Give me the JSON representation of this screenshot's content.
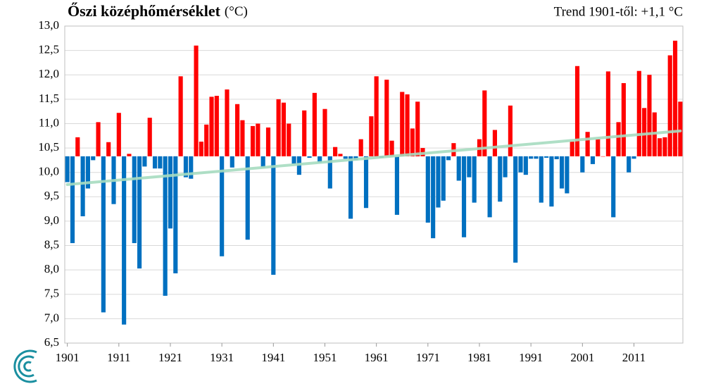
{
  "chart_data": {
    "type": "bar",
    "title": "Őszi középhőmérséklet",
    "title_unit": "(°C)",
    "trend_label": "Trend 1901-től: +1,1 °C",
    "x": [
      1901,
      1902,
      1903,
      1904,
      1905,
      1906,
      1907,
      1908,
      1909,
      1910,
      1911,
      1912,
      1913,
      1914,
      1915,
      1916,
      1917,
      1918,
      1919,
      1920,
      1921,
      1922,
      1923,
      1924,
      1925,
      1926,
      1927,
      1928,
      1929,
      1930,
      1931,
      1932,
      1933,
      1934,
      1935,
      1936,
      1937,
      1938,
      1939,
      1940,
      1941,
      1942,
      1943,
      1944,
      1945,
      1946,
      1947,
      1948,
      1949,
      1950,
      1951,
      1952,
      1953,
      1954,
      1955,
      1956,
      1957,
      1958,
      1959,
      1960,
      1961,
      1962,
      1963,
      1964,
      1965,
      1966,
      1967,
      1968,
      1969,
      1970,
      1971,
      1972,
      1973,
      1974,
      1975,
      1976,
      1977,
      1978,
      1979,
      1980,
      1981,
      1982,
      1983,
      1984,
      1985,
      1986,
      1987,
      1988,
      1989,
      1990,
      1991,
      1992,
      1993,
      1994,
      1995,
      1996,
      1997,
      1998,
      1999,
      2000,
      2001,
      2002,
      2003,
      2004,
      2005,
      2006,
      2007,
      2008,
      2009,
      2010,
      2011,
      2012,
      2013,
      2014,
      2015,
      2016,
      2017,
      2018,
      2019,
      2020
    ],
    "values": [
      9.8,
      8.55,
      10.72,
      9.1,
      9.67,
      10.25,
      11.03,
      7.13,
      10.62,
      9.35,
      11.22,
      6.88,
      10.38,
      8.55,
      8.03,
      10.12,
      11.12,
      10.08,
      10.08,
      7.47,
      8.85,
      7.93,
      11.97,
      9.9,
      9.87,
      12.6,
      10.63,
      10.98,
      11.55,
      11.57,
      8.28,
      11.7,
      10.1,
      11.4,
      11.07,
      8.62,
      10.95,
      11.0,
      10.1,
      10.92,
      7.9,
      11.5,
      11.43,
      11.0,
      10.17,
      9.95,
      11.27,
      10.3,
      11.63,
      10.2,
      11.3,
      9.67,
      10.52,
      10.38,
      10.28,
      9.05,
      10.25,
      10.68,
      9.27,
      11.15,
      11.97,
      10.3,
      11.9,
      10.65,
      9.13,
      11.65,
      11.6,
      10.9,
      11.45,
      10.5,
      8.97,
      8.65,
      9.28,
      9.42,
      10.25,
      10.6,
      9.83,
      8.67,
      9.9,
      9.38,
      10.68,
      11.68,
      9.08,
      10.87,
      9.4,
      9.9,
      11.37,
      8.15,
      10.0,
      9.95,
      10.28,
      10.28,
      9.38,
      10.3,
      9.3,
      10.27,
      9.67,
      9.57,
      10.63,
      12.18,
      10.0,
      10.83,
      10.17,
      10.68,
      10.33,
      12.07,
      9.08,
      11.03,
      11.83,
      10.0,
      10.28,
      12.08,
      11.32,
      12.0,
      11.23,
      10.7,
      10.72,
      12.4,
      12.7,
      11.45
    ],
    "base": 10.33,
    "colors": {
      "above": "#ff0000",
      "below": "#0070c0"
    },
    "trend": {
      "x": [
        1901,
        2020
      ],
      "values": [
        9.75,
        10.85
      ],
      "color": "#a6dcc0"
    },
    "xlim": [
      1900.5,
      2020.5
    ],
    "xticks": [
      1901,
      1911,
      1921,
      1931,
      1941,
      1951,
      1961,
      1971,
      1981,
      1991,
      2001,
      2011
    ],
    "ylim": [
      6.5,
      13.0
    ],
    "yticks": [
      {
        "value": 6.5,
        "label": "6,5"
      },
      {
        "value": 7,
        "label": "7,0"
      },
      {
        "value": 7.5,
        "label": "7,5"
      },
      {
        "value": 8,
        "label": "8,0"
      },
      {
        "value": 8.5,
        "label": "8,5"
      },
      {
        "value": 9,
        "label": "9,0"
      },
      {
        "value": 9.5,
        "label": "9,5"
      },
      {
        "value": 10,
        "label": "10,0"
      },
      {
        "value": 10.5,
        "label": "10,5"
      },
      {
        "value": 11,
        "label": "11,0"
      },
      {
        "value": 11.5,
        "label": "11,5"
      },
      {
        "value": 12,
        "label": "12,0"
      },
      {
        "value": 12.5,
        "label": "12,5"
      },
      {
        "value": 13,
        "label": "13,0"
      }
    ],
    "grid": true
  }
}
